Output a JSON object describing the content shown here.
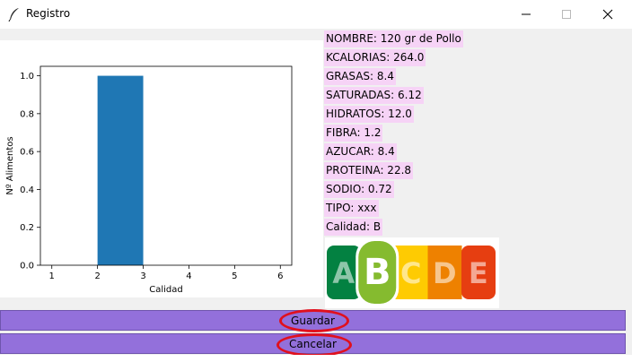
{
  "window": {
    "title": "Registro",
    "icon": "feather-icon",
    "controls": [
      "minimize-icon",
      "maximize-icon",
      "close-icon"
    ]
  },
  "chart_data": {
    "type": "bar",
    "categories": [
      1,
      2,
      3,
      4,
      5,
      6
    ],
    "bars": [
      {
        "x_start": 2,
        "x_end": 3,
        "value": 1.0
      }
    ],
    "xlabel": "Calidad",
    "ylabel": "Nº Alimentos",
    "xlim": [
      0.75,
      6.25
    ],
    "ylim": [
      0,
      1.05
    ],
    "xticks": [
      "1",
      "2",
      "3",
      "4",
      "5",
      "6"
    ],
    "yticks": [
      "0.0",
      "0.2",
      "0.4",
      "0.6",
      "0.8",
      "1.0"
    ],
    "grid": false,
    "bar_color": "#1f77b4"
  },
  "info": [
    "NOMBRE: 120 gr de Pollo",
    "KCALORIAS: 264.0",
    "GRASAS: 8.4",
    "SATURADAS: 6.12",
    "HIDRATOS: 12.0",
    "FIBRA: 1.2",
    "AZUCAR: 8.4",
    "PROTEINA: 22.8",
    "SODIO: 0.72",
    "TIPO: xxx",
    "Calidad: B"
  ],
  "nutriscore": {
    "letters": [
      "A",
      "B",
      "C",
      "D",
      "E"
    ],
    "selected": "B",
    "colors": [
      "#038141",
      "#85bb2f",
      "#fecb02",
      "#ee8100",
      "#e63e11"
    ]
  },
  "buttons": {
    "save_label": "Guardar",
    "cancel_label": "Cancelar",
    "color": "#9370db",
    "highlight_color": "#e0101e"
  }
}
